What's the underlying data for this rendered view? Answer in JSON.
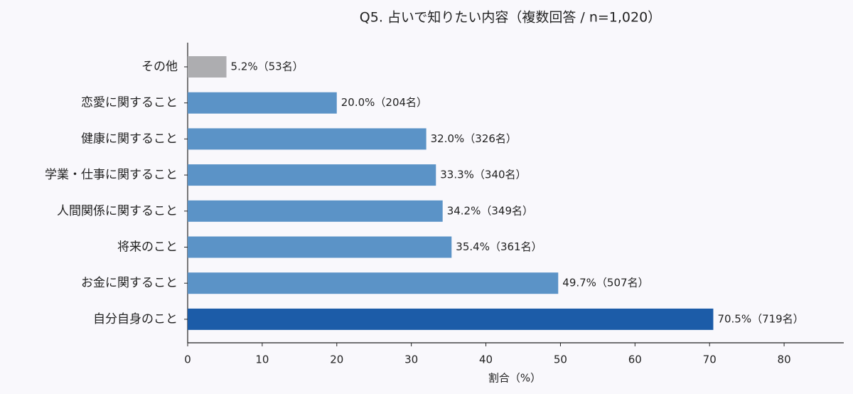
{
  "chart_data": {
    "type": "barh",
    "title": "Q5. 占いで知りたい内容（複数回答 / n=1,020）",
    "x_label": "割合（%）",
    "categories": [
      "その他",
      "恋愛に関すること",
      "健康に関すること",
      "学業・仕事に関すること",
      "人間関係に関すること",
      "将来のこと",
      "お金に関すること",
      "自分自身のこと"
    ],
    "values": [
      5.2,
      20.0,
      32.0,
      33.3,
      34.2,
      35.4,
      49.7,
      70.5
    ],
    "value_labels": [
      "5.2%（53名）",
      "20.0%（204名）",
      "32.0%（326名）",
      "33.3%（340名）",
      "34.2%（349名）",
      "35.4%（361名）",
      "49.7%（507名）",
      "70.5%（719名）"
    ],
    "colors": [
      "#adadb0",
      "#5b93c7",
      "#5b93c7",
      "#5b93c7",
      "#5b93c7",
      "#5b93c7",
      "#5b93c7",
      "#1c5ca8"
    ],
    "xlim": [
      0,
      88
    ],
    "xticks": [
      0,
      10,
      20,
      30,
      40,
      50,
      60,
      70,
      80
    ]
  }
}
